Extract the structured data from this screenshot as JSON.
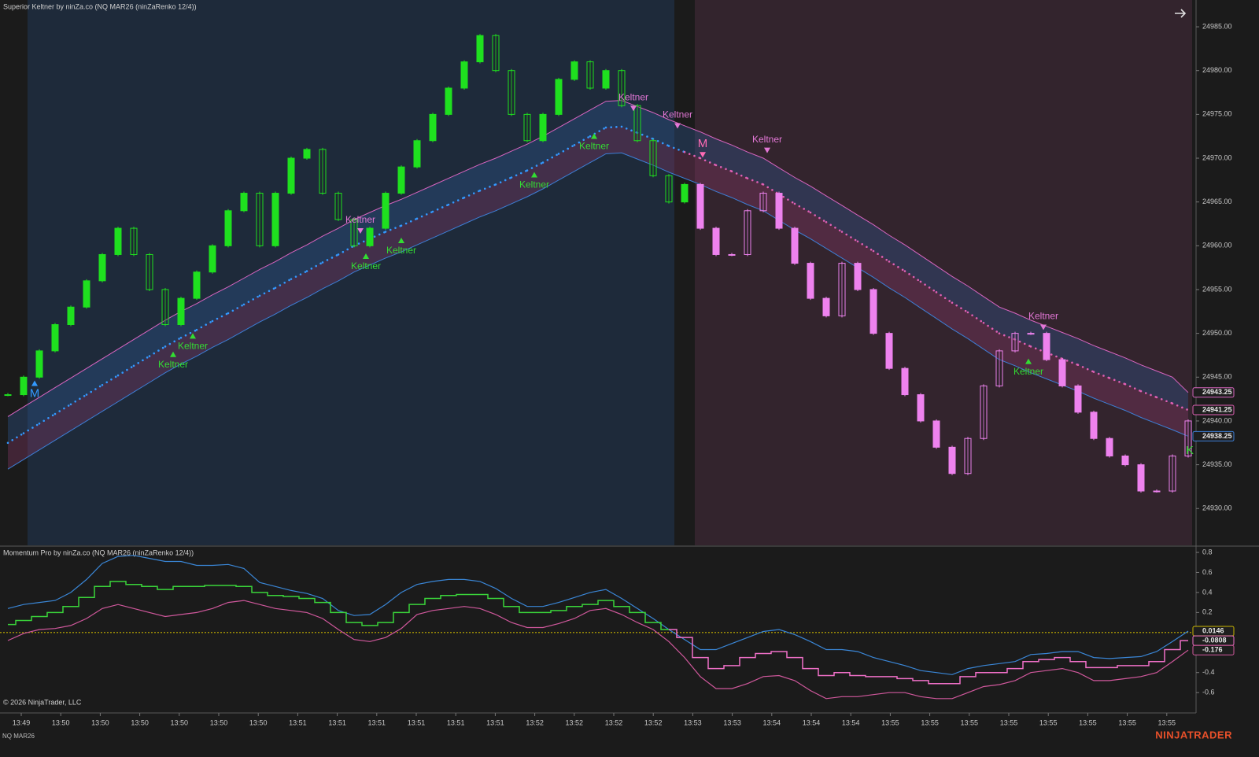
{
  "chart_data": [
    {
      "type": "renko",
      "title": "Superior Keltner by ninZa.co (NQ MAR26 (ninZaRenko 12/4))",
      "xlim": [
        -0.5,
        75.5
      ],
      "ylim": [
        24925.8,
        24988.06
      ],
      "yticks": [
        {
          "value": 24930,
          "label": "24930.00"
        },
        {
          "value": 24935,
          "label": "24935.00"
        },
        {
          "value": 24940,
          "label": "24940.00"
        },
        {
          "value": 24945,
          "label": "24945.00"
        },
        {
          "value": 24950,
          "label": "24950.00"
        },
        {
          "value": 24955,
          "label": "24955.00"
        },
        {
          "value": 24960,
          "label": "24960.00"
        },
        {
          "value": 24965,
          "label": "24965.00"
        },
        {
          "value": 24970,
          "label": "24970.00"
        },
        {
          "value": 24975,
          "label": "24975.00"
        },
        {
          "value": 24980,
          "label": "24980.00"
        },
        {
          "value": 24985,
          "label": "24985.00"
        }
      ],
      "up_color": "#1fe01f",
      "down_color": "#ee82ee",
      "regions": [
        {
          "from": 1.25,
          "to": 42.35,
          "trend": "up",
          "color": "#1e2a3a"
        },
        {
          "from": 43.65,
          "to": 75.25,
          "trend": "down",
          "color": "#33242d"
        }
      ],
      "closes": [
        24943,
        24945,
        24948,
        24951,
        24953,
        24956,
        24959,
        24962,
        24959,
        24955,
        24951,
        24954,
        24957,
        24960,
        24964,
        24966,
        24960,
        24966,
        24970,
        24971,
        24966,
        24963,
        24960,
        24962,
        24966,
        24969,
        24972,
        24975,
        24978,
        24981,
        24984,
        24980,
        24975,
        24972,
        24975,
        24979,
        24981,
        24978,
        24980,
        24976,
        24972,
        24968,
        24965,
        24967,
        24962,
        24959,
        24959,
        24964,
        24966,
        24962,
        24958,
        24954,
        24952,
        24958,
        24955,
        24950,
        24946,
        24943,
        24940,
        24937,
        24934,
        24938,
        24944,
        24948,
        24950,
        24950,
        24947,
        24944,
        24941,
        24938,
        24936,
        24935,
        24932,
        24932,
        24936,
        24940
      ],
      "upper": {
        "color": "#d965c0",
        "fill": "#2f5a95",
        "last_label": "24943.25",
        "values": [
          24940.5,
          24941.6,
          24942.7,
          24943.8,
          24944.9,
          24946,
          24947.1,
          24948.2,
          24949.3,
          24950.4,
          24951.5,
          24952.5,
          24953.4,
          24954.4,
          24955.3,
          24956.3,
          24957.3,
          24958.2,
          24959.2,
          24960.1,
          24961.1,
          24962,
          24963,
          24963.8,
          24964.6,
          24965.3,
          24966.1,
          24966.9,
          24967.7,
          24968.5,
          24969.3,
          24970,
          24970.8,
          24971.6,
          24972.5,
          24973.5,
          24974.5,
          24975.5,
          24976.5,
          24976.6,
          24975.9,
          24975.2,
          24974.4,
          24973.7,
          24973,
          24972.2,
          24971.5,
          24970.7,
          24970,
          24968.9,
          24967.8,
          24966.8,
          24965.7,
          24964.6,
          24963.5,
          24962.4,
          24961.2,
          24960.1,
          24958.9,
          24957.7,
          24956.5,
          24955.4,
          24954.2,
          24953,
          24952.3,
          24951.5,
          24950.8,
          24950.1,
          24949.4,
          24948.6,
          24947.9,
          24947.2,
          24946.4,
          24945.7,
          24945,
          24943.25
        ]
      },
      "middle": {
        "up_color": "#3399ff",
        "down_color": "#e060b4",
        "last_label": "24941.25",
        "values": [
          24937.5,
          24938.6,
          24939.7,
          24940.8,
          24941.9,
          24943,
          24944.1,
          24945.2,
          24946.3,
          24947.4,
          24948.5,
          24949.5,
          24950.4,
          24951.4,
          24952.3,
          24953.3,
          24954.3,
          24955.2,
          24956.2,
          24957.1,
          24958.1,
          24959,
          24960,
          24960.8,
          24961.6,
          24962.3,
          24963.1,
          24963.9,
          24964.7,
          24965.5,
          24966.3,
          24967,
          24967.8,
          24968.6,
          24969.5,
          24970.5,
          24971.5,
          24972.5,
          24973.5,
          24973.6,
          24972.9,
          24972.2,
          24971.4,
          24970.7,
          24970,
          24969.2,
          24968.5,
          24967.7,
          24967,
          24965.9,
          24964.8,
          24963.8,
          24962.7,
          24961.6,
          24960.5,
          24959.4,
          24958.2,
          24957.1,
          24955.9,
          24954.7,
          24953.5,
          24952.4,
          24951.2,
          24950,
          24949.3,
          24948.5,
          24947.8,
          24947.1,
          24946.4,
          24945.6,
          24944.9,
          24944.2,
          24943.4,
          24942.7,
          24942,
          24941.25
        ]
      },
      "lower": {
        "color": "#3d7fd6",
        "fill": "#8a3a6a",
        "last_label": "24938.25",
        "values": [
          24934.5,
          24935.6,
          24936.7,
          24937.8,
          24938.9,
          24940,
          24941.1,
          24942.2,
          24943.3,
          24944.4,
          24945.5,
          24946.5,
          24947.4,
          24948.4,
          24949.3,
          24950.3,
          24951.3,
          24952.2,
          24953.2,
          24954.1,
          24955.1,
          24956,
          24957,
          24957.8,
          24958.6,
          24959.3,
          24960.1,
          24960.9,
          24961.7,
          24962.5,
          24963.3,
          24964,
          24964.8,
          24965.6,
          24966.5,
          24967.5,
          24968.5,
          24969.5,
          24970.5,
          24970.6,
          24969.9,
          24969.2,
          24968.4,
          24967.7,
          24967,
          24966.2,
          24965.5,
          24964.7,
          24964,
          24962.9,
          24961.8,
          24960.8,
          24959.7,
          24958.6,
          24957.5,
          24956.4,
          24955.2,
          24954.1,
          24952.9,
          24951.7,
          24950.5,
          24949.4,
          24948.2,
          24947,
          24946.3,
          24945.5,
          24944.8,
          24944.1,
          24943.4,
          24942.6,
          24941.9,
          24941.2,
          24940.4,
          24939.7,
          24939,
          24938.25
        ]
      },
      "annotations": [
        {
          "text": "M",
          "x": 1.7,
          "y": 24943.1,
          "color": "#3399ff",
          "marker": "up"
        },
        {
          "text": "Keltner",
          "x": 10.5,
          "y": 24946.4,
          "color": "#33dd33",
          "marker": "up"
        },
        {
          "text": "Keltner",
          "x": 11.75,
          "y": 24948.5,
          "color": "#33dd33",
          "marker": "up"
        },
        {
          "text": "Keltner",
          "x": 22.4,
          "y": 24962.9,
          "color": "#e377d6",
          "marker": "down"
        },
        {
          "text": "Keltner",
          "x": 22.75,
          "y": 24957.6,
          "color": "#33dd33",
          "marker": "up"
        },
        {
          "text": "Keltner",
          "x": 25,
          "y": 24959.4,
          "color": "#33dd33",
          "marker": "up"
        },
        {
          "text": "Keltner",
          "x": 33.45,
          "y": 24966.9,
          "color": "#33dd33",
          "marker": "up"
        },
        {
          "text": "Keltner",
          "x": 37.25,
          "y": 24971.3,
          "color": "#33dd33",
          "marker": "up"
        },
        {
          "text": "Keltner",
          "x": 39.75,
          "y": 24976.9,
          "color": "#e377d6",
          "marker": "down"
        },
        {
          "text": "Keltner",
          "x": 42.55,
          "y": 24974.9,
          "color": "#e377d6",
          "marker": "down"
        },
        {
          "text": "M",
          "x": 44.15,
          "y": 24971.6,
          "color": "#ff6ab4",
          "marker": "down"
        },
        {
          "text": "Keltner",
          "x": 48.25,
          "y": 24972.1,
          "color": "#e377d6",
          "marker": "down"
        },
        {
          "text": "Keltner",
          "x": 64.85,
          "y": 24945.6,
          "color": "#33dd33",
          "marker": "up"
        },
        {
          "text": "Keltner",
          "x": 65.8,
          "y": 24951.9,
          "color": "#e377d6",
          "marker": "down"
        },
        {
          "text": "K",
          "x": 75.1,
          "y": 24936.6,
          "color": "#33dd33"
        }
      ]
    },
    {
      "type": "line",
      "title": "Momentum Pro by ninZa.co (NQ MAR26 (ninZaRenko 12/4))",
      "copyright": "© 2026 NinjaTrader, LLC",
      "xlim": [
        -0.5,
        75.5
      ],
      "ylim": [
        -0.795,
        0.855
      ],
      "yticks": [
        -0.6,
        -0.4,
        0.2,
        0.4,
        0.6,
        0.8
      ],
      "zero_line": {
        "value": 0,
        "color": "#c8b400"
      },
      "xticks": [
        {
          "value": 0.85,
          "label": "13:49"
        },
        {
          "value": 3.36,
          "label": "13:50"
        },
        {
          "value": 5.87,
          "label": "13:50"
        },
        {
          "value": 8.38,
          "label": "13:50"
        },
        {
          "value": 10.89,
          "label": "13:50"
        },
        {
          "value": 13.4,
          "label": "13:50"
        },
        {
          "value": 15.91,
          "label": "13:50"
        },
        {
          "value": 18.42,
          "label": "13:51"
        },
        {
          "value": 20.93,
          "label": "13:51"
        },
        {
          "value": 23.44,
          "label": "13:51"
        },
        {
          "value": 25.95,
          "label": "13:51"
        },
        {
          "value": 28.46,
          "label": "13:51"
        },
        {
          "value": 30.97,
          "label": "13:51"
        },
        {
          "value": 33.48,
          "label": "13:52"
        },
        {
          "value": 35.99,
          "label": "13:52"
        },
        {
          "value": 38.5,
          "label": "13:52"
        },
        {
          "value": 41.01,
          "label": "13:52"
        },
        {
          "value": 43.52,
          "label": "13:53"
        },
        {
          "value": 46.03,
          "label": "13:53"
        },
        {
          "value": 48.54,
          "label": "13:54"
        },
        {
          "value": 51.05,
          "label": "13:54"
        },
        {
          "value": 53.56,
          "label": "13:54"
        },
        {
          "value": 56.07,
          "label": "13:55"
        },
        {
          "value": 58.58,
          "label": "13:55"
        },
        {
          "value": 61.09,
          "label": "13:55"
        },
        {
          "value": 63.6,
          "label": "13:55"
        },
        {
          "value": 66.11,
          "label": "13:55"
        },
        {
          "value": 68.62,
          "label": "13:55"
        },
        {
          "value": 71.13,
          "label": "13:55"
        },
        {
          "value": 73.64,
          "label": "13:55"
        }
      ],
      "upper": {
        "color": "#3a86d6",
        "last_label": "0.0146",
        "values": [
          0.24,
          0.28,
          0.3,
          0.32,
          0.4,
          0.53,
          0.69,
          0.76,
          0.77,
          0.74,
          0.71,
          0.71,
          0.67,
          0.67,
          0.68,
          0.64,
          0.5,
          0.46,
          0.42,
          0.39,
          0.34,
          0.22,
          0.17,
          0.18,
          0.28,
          0.4,
          0.48,
          0.51,
          0.53,
          0.53,
          0.51,
          0.44,
          0.34,
          0.26,
          0.26,
          0.3,
          0.35,
          0.4,
          0.43,
          0.34,
          0.24,
          0.14,
          0.03,
          -0.07,
          -0.17,
          -0.17,
          -0.11,
          -0.05,
          0.01,
          0.03,
          -0.02,
          -0.09,
          -0.17,
          -0.17,
          -0.19,
          -0.25,
          -0.29,
          -0.33,
          -0.38,
          -0.4,
          -0.42,
          -0.36,
          -0.33,
          -0.31,
          -0.29,
          -0.22,
          -0.21,
          -0.19,
          -0.19,
          -0.25,
          -0.26,
          -0.25,
          -0.24,
          -0.19,
          -0.09,
          0.0146
        ]
      },
      "momentum": {
        "up_color": "#3ad43a",
        "down_color": "#f070c8",
        "last_label": "-0.0808",
        "values": [
          0.08,
          0.12,
          0.16,
          0.2,
          0.26,
          0.35,
          0.46,
          0.51,
          0.48,
          0.46,
          0.43,
          0.46,
          0.46,
          0.47,
          0.47,
          0.46,
          0.4,
          0.37,
          0.36,
          0.34,
          0.3,
          0.2,
          0.1,
          0.07,
          0.1,
          0.2,
          0.28,
          0.34,
          0.37,
          0.38,
          0.38,
          0.34,
          0.26,
          0.2,
          0.2,
          0.22,
          0.26,
          0.28,
          0.32,
          0.26,
          0.2,
          0.1,
          0.03,
          -0.05,
          -0.25,
          -0.36,
          -0.33,
          -0.25,
          -0.21,
          -0.19,
          -0.25,
          -0.36,
          -0.43,
          -0.4,
          -0.43,
          -0.44,
          -0.44,
          -0.46,
          -0.48,
          -0.51,
          -0.51,
          -0.44,
          -0.4,
          -0.4,
          -0.36,
          -0.29,
          -0.27,
          -0.25,
          -0.29,
          -0.35,
          -0.35,
          -0.33,
          -0.33,
          -0.29,
          -0.17,
          -0.0808
        ]
      },
      "lower": {
        "color": "#d0589c",
        "last_label": "-0.176",
        "values": [
          -0.08,
          -0.01,
          0.03,
          0.04,
          0.07,
          0.14,
          0.24,
          0.28,
          0.24,
          0.2,
          0.16,
          0.18,
          0.2,
          0.24,
          0.3,
          0.32,
          0.28,
          0.24,
          0.22,
          0.2,
          0.14,
          0.03,
          -0.07,
          -0.09,
          -0.05,
          0.04,
          0.18,
          0.22,
          0.24,
          0.26,
          0.24,
          0.18,
          0.1,
          0.05,
          0.05,
          0.09,
          0.14,
          0.22,
          0.24,
          0.18,
          0.1,
          0.03,
          -0.09,
          -0.25,
          -0.44,
          -0.56,
          -0.56,
          -0.51,
          -0.44,
          -0.43,
          -0.48,
          -0.58,
          -0.66,
          -0.64,
          -0.64,
          -0.62,
          -0.6,
          -0.6,
          -0.64,
          -0.66,
          -0.66,
          -0.6,
          -0.54,
          -0.52,
          -0.48,
          -0.4,
          -0.38,
          -0.36,
          -0.4,
          -0.48,
          -0.48,
          -0.46,
          -0.44,
          -0.4,
          -0.29,
          -0.176
        ]
      }
    }
  ],
  "footer": {
    "instrument": "NQ MAR26",
    "brand": "NINJATRADER"
  }
}
